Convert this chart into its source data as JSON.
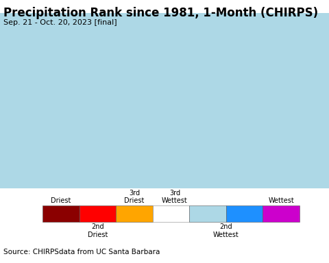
{
  "title": "Precipitation Rank since 1981, 1-Month (CHIRPS)",
  "subtitle": "Sep. 21 - Oct. 20, 2023 [final]",
  "source": "Source: CHIRPSdata from UC Santa Barbara",
  "legend_colors": [
    "#8B0000",
    "#FF0000",
    "#FFA500",
    "#FFFFFF",
    "#ADD8E6",
    "#1E90FF",
    "#CC00CC"
  ],
  "map_bg": "#ADD8E6",
  "us_fill": "#F5F5F5",
  "outside_fill": "#D3C8D3",
  "canada_fill": "#E8E8E8",
  "mexico_fill": "#D3C8D3",
  "lake_fill": "#ADD8E6",
  "state_edge_color": "#888888",
  "country_edge_color": "#000000",
  "coast_color": "#000000",
  "title_fontsize": 12,
  "subtitle_fontsize": 8,
  "source_fontsize": 7.5,
  "map_extent": [
    -125,
    -66,
    22,
    52
  ],
  "central_longitude": -96,
  "central_latitude": 39
}
